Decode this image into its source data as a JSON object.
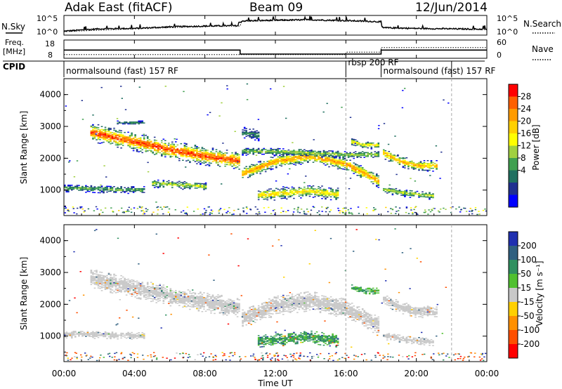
{
  "header": {
    "radar_title": "Adak East (fitACF)",
    "beam": "Beam 09",
    "date": "12/Jun/2014"
  },
  "top_panels": {
    "nsky_label": "N.Sky",
    "nsearch_label": "N.Search",
    "noise_ticks_left": [
      "10^5",
      "10^0"
    ],
    "noise_ticks_right": [
      "10^5",
      "10^0"
    ],
    "freq_label": "Freq.",
    "freq_unit": "[MHz]",
    "freq_ticks": [
      "18",
      "8"
    ],
    "nave_label": "Nave",
    "nave_ticks": [
      "60",
      "0"
    ],
    "cpid_label": "CPID",
    "cpid_segments": [
      {
        "start_hour": 0,
        "end_hour": 16,
        "label": "normalsound (fast) 157 RF"
      },
      {
        "start_hour": 16,
        "end_hour": 18,
        "label": "rbsp 200 RF"
      },
      {
        "start_hour": 18,
        "end_hour": 22,
        "label": "normalsound (fast) 157 RF"
      }
    ]
  },
  "panels": {
    "ylabel": "Slant Range [km]",
    "yticks": [
      1000,
      2000,
      3000,
      4000
    ],
    "xlabel": "Time UT",
    "xticks": [
      "00:00",
      "04:00",
      "08:00",
      "12:00",
      "16:00",
      "20:00",
      "00:00"
    ]
  },
  "power_scale": {
    "label": "Power [dB]",
    "ticks": [
      "28",
      "24",
      "20",
      "16",
      "12",
      "8",
      "4"
    ],
    "colors_top_to_bottom": [
      "#ff0000",
      "#ff6000",
      "#ff9b00",
      "#ffd000",
      "#ffff00",
      "#a0d040",
      "#40a050",
      "#207060",
      "#203090",
      "#0000ff"
    ]
  },
  "velocity_scale": {
    "label": "Velocity [m s⁻¹]",
    "ticks": [
      "200",
      "100",
      "50",
      "15",
      "-15",
      "-50",
      "-100",
      "-200"
    ],
    "colors_top_to_bottom": [
      "#2030b0",
      "#306080",
      "#309060",
      "#50c030",
      "#c8c8c8",
      "#ffd000",
      "#ff9000",
      "#ff5000",
      "#ff0000"
    ]
  },
  "chart_data": [
    {
      "type": "line",
      "series": [
        {
          "name": "N.Sky",
          "x_hours": [
            0,
            1,
            2,
            4,
            6,
            8,
            10,
            10.05,
            12,
            14,
            16,
            18,
            18.05,
            20,
            22,
            24
          ],
          "log10_noise": [
            1.0,
            1.3,
            1.6,
            1.7,
            2.1,
            2.3,
            2.4,
            3.6,
            3.8,
            3.9,
            3.7,
            3.4,
            1.9,
            1.7,
            1.6,
            1.5
          ]
        },
        {
          "name": "N.Search",
          "x_hours": [
            0,
            4,
            8,
            10,
            10.05,
            14,
            18,
            18.05,
            24
          ],
          "log10_noise": [
            1.0,
            1.7,
            2.3,
            2.4,
            3.6,
            3.9,
            3.4,
            1.9,
            1.5
          ]
        }
      ],
      "ylim": [
        0,
        5
      ]
    },
    {
      "type": "line",
      "series": [
        {
          "name": "Freq.",
          "x_hours": [
            0,
            10,
            10,
            18,
            18,
            24
          ],
          "mhz": [
            12.5,
            12.5,
            10.3,
            10.3,
            12.5,
            12.5
          ]
        },
        {
          "name": "Nave",
          "x_hours": [
            0,
            16,
            16,
            18,
            18,
            24
          ],
          "count": [
            12,
            12,
            20,
            20,
            35,
            35
          ]
        }
      ],
      "ylim_freq": [
        8,
        18
      ],
      "ylim_nave": [
        0,
        60
      ]
    },
    {
      "type": "heatmap",
      "quantity": "power_db",
      "clim": [
        0,
        30
      ],
      "ylim": [
        200,
        4500
      ],
      "xlim_hours": [
        0,
        24
      ],
      "features": [
        {
          "t": [
            1.5,
            4.0,
            6.0,
            8.0,
            9.9
          ],
          "center_km": [
            2800,
            2500,
            2250,
            2050,
            1900
          ],
          "halfwidth_km": 220,
          "peak_db": 26
        },
        {
          "t": [
            0.0,
            1.5,
            3.0,
            4.5
          ],
          "center_km": [
            1050,
            1030,
            1000,
            1000
          ],
          "halfwidth_km": 90,
          "peak_db": 11
        },
        {
          "t": [
            5.0,
            6.5,
            8.0
          ],
          "center_km": [
            1200,
            1150,
            1100
          ],
          "halfwidth_km": 100,
          "peak_db": 14
        },
        {
          "t": [
            10.1,
            12.0,
            14.0,
            16.0,
            17.9
          ],
          "center_km": [
            1500,
            1900,
            2050,
            1800,
            1250
          ],
          "halfwidth_km": 160,
          "peak_db": 22
        },
        {
          "t": [
            10.1,
            12.0,
            14.0,
            16.0,
            17.9
          ],
          "center_km": [
            2200,
            2200,
            2150,
            2100,
            2100
          ],
          "halfwidth_km": 90,
          "peak_db": 13
        },
        {
          "t": [
            11.0,
            12.5,
            14.0,
            15.5
          ],
          "center_km": [
            820,
            900,
            960,
            850
          ],
          "halfwidth_km": 150,
          "peak_db": 18
        },
        {
          "t": [
            16.3,
            17.0,
            17.9
          ],
          "center_km": [
            2500,
            2400,
            2400
          ],
          "halfwidth_km": 90,
          "peak_db": 17
        },
        {
          "t": [
            18.1,
            19.0,
            20.0,
            21.2
          ],
          "center_km": [
            2150,
            1900,
            1750,
            1750
          ],
          "halfwidth_km": 130,
          "peak_db": 21
        },
        {
          "t": [
            18.1,
            19.5,
            21.0
          ],
          "center_km": [
            1000,
            880,
            800
          ],
          "halfwidth_km": 90,
          "peak_db": 14
        },
        {
          "t": [
            3.0,
            3.8,
            4.5
          ],
          "center_km": [
            3100,
            3100,
            3100
          ],
          "halfwidth_km": 50,
          "peak_db": 8
        },
        {
          "t": [
            10.1,
            10.6,
            11.0
          ],
          "center_km": [
            2800,
            2750,
            2700
          ],
          "halfwidth_km": 150,
          "peak_db": 8
        }
      ]
    },
    {
      "type": "heatmap",
      "quantity": "velocity_ms",
      "clim": [
        -250,
        250
      ],
      "ylim": [
        200,
        4500
      ],
      "xlim_hours": [
        0,
        24
      ],
      "features": [
        {
          "t": [
            1.5,
            4.0,
            6.0,
            8.0,
            9.9
          ],
          "center_km": [
            2800,
            2500,
            2250,
            2050,
            1900
          ],
          "halfwidth_km": 240,
          "velocity": 0
        },
        {
          "t": [
            10.1,
            12.0,
            14.0,
            16.0,
            17.9
          ],
          "center_km": [
            1550,
            1950,
            2100,
            1850,
            1300
          ],
          "halfwidth_km": 240,
          "velocity": 0
        },
        {
          "t": [
            11.0,
            12.5,
            14.0,
            15.5
          ],
          "center_km": [
            820,
            900,
            960,
            850
          ],
          "halfwidth_km": 160,
          "velocity": 35
        },
        {
          "t": [
            16.3,
            17.0,
            17.9
          ],
          "center_km": [
            2500,
            2400,
            2400
          ],
          "halfwidth_km": 90,
          "velocity": 30
        },
        {
          "t": [
            18.1,
            19.0,
            20.0,
            21.2
          ],
          "center_km": [
            2150,
            1900,
            1750,
            1750
          ],
          "halfwidth_km": 140,
          "velocity": 0
        },
        {
          "t": [
            0.0,
            2.0,
            4.5
          ],
          "center_km": [
            1050,
            1030,
            1000
          ],
          "halfwidth_km": 90,
          "velocity": 0
        },
        {
          "t": [
            18.1,
            19.5,
            21.0
          ],
          "center_km": [
            1000,
            880,
            800
          ],
          "halfwidth_km": 90,
          "velocity": 0
        }
      ]
    }
  ]
}
